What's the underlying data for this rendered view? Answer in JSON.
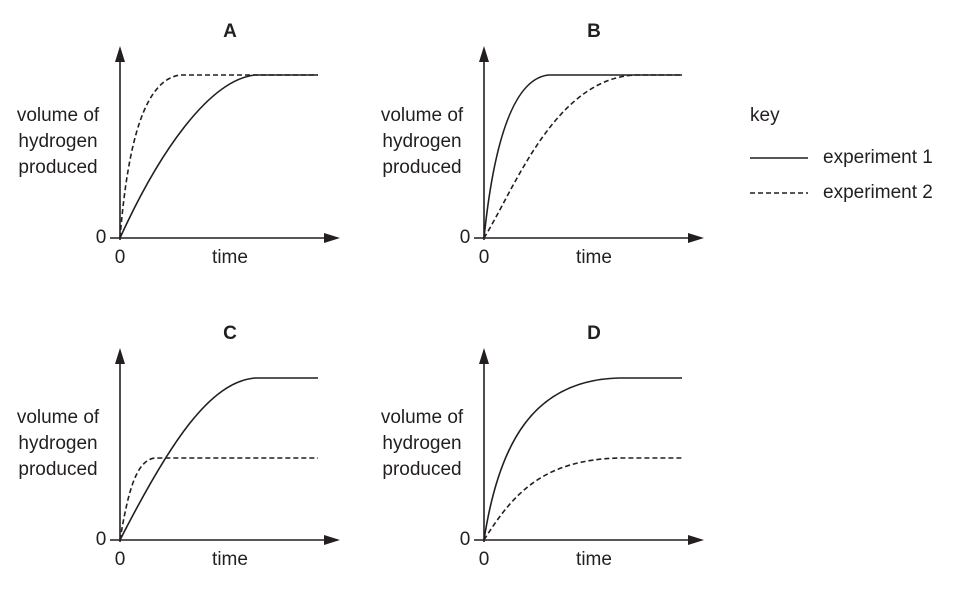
{
  "panels": [
    {
      "title": "A",
      "y_label": [
        "volume of",
        "hydrogen",
        "produced"
      ],
      "y_origin": "0",
      "x_origin": "0",
      "x_label": "time"
    },
    {
      "title": "B",
      "y_label": [
        "volume of",
        "hydrogen",
        "produced"
      ],
      "y_origin": "0",
      "x_origin": "0",
      "x_label": "time"
    },
    {
      "title": "C",
      "y_label": [
        "volume of",
        "hydrogen",
        "produced"
      ],
      "y_origin": "0",
      "x_origin": "0",
      "x_label": "time"
    },
    {
      "title": "D",
      "y_label": [
        "volume of",
        "hydrogen",
        "produced"
      ],
      "y_origin": "0",
      "x_origin": "0",
      "x_label": "time"
    }
  ],
  "key": {
    "title": "key",
    "items": [
      "experiment 1",
      "experiment 2"
    ]
  }
}
